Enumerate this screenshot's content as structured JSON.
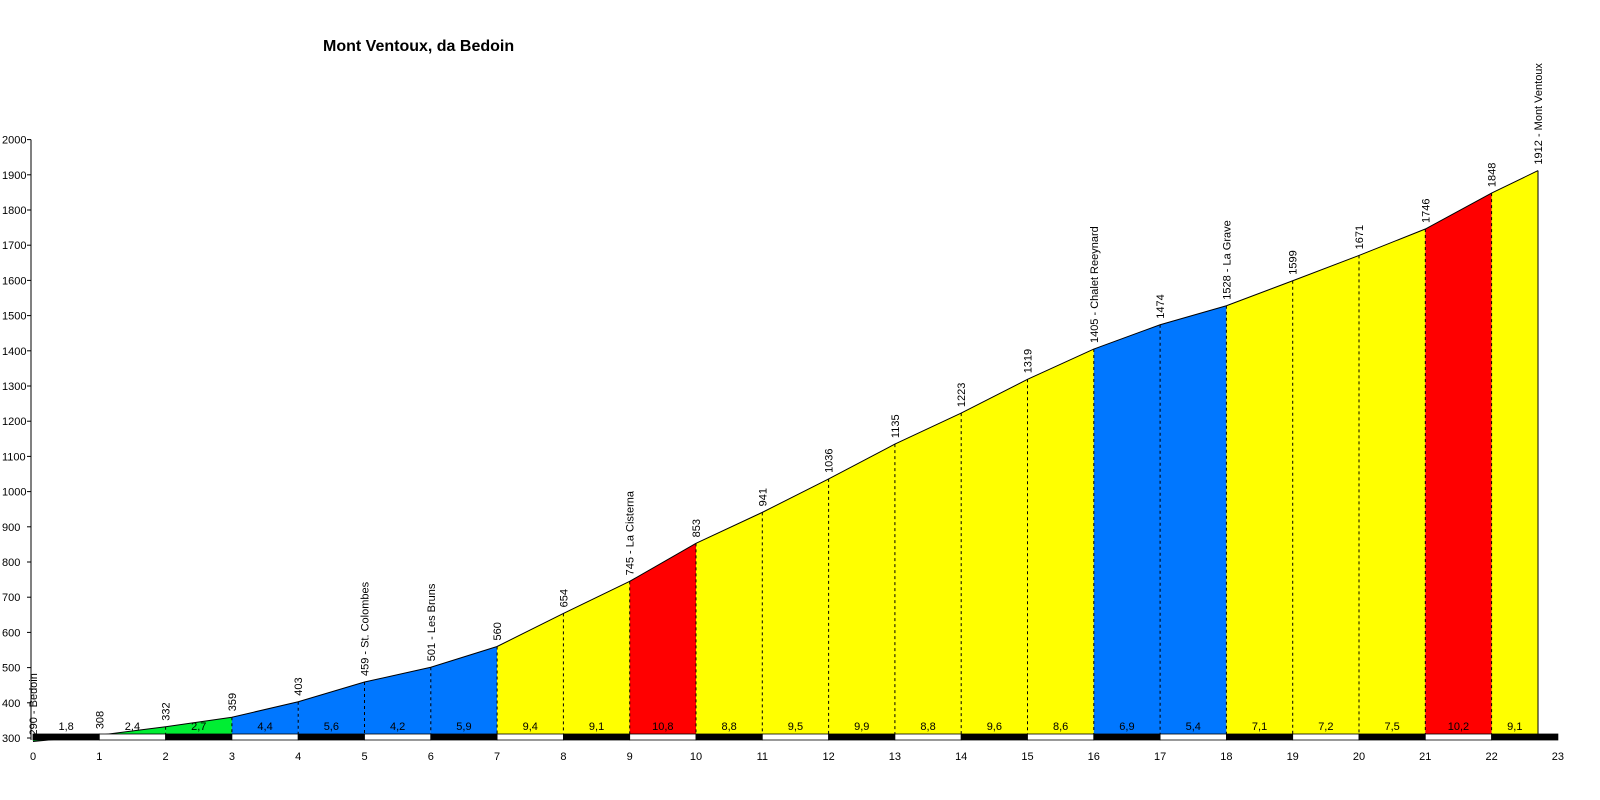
{
  "chart_data": {
    "type": "area",
    "title": "Mont Ventoux, da Bedoin",
    "xlim": [
      0,
      23
    ],
    "ylim": [
      250,
      2000
    ],
    "x_ticks": [
      0,
      1,
      2,
      3,
      4,
      5,
      6,
      7,
      8,
      9,
      10,
      11,
      12,
      13,
      14,
      15,
      16,
      17,
      18,
      19,
      20,
      21,
      22,
      23
    ],
    "y_ticks": [
      300,
      400,
      500,
      600,
      700,
      800,
      900,
      1000,
      1100,
      1200,
      1300,
      1400,
      1500,
      1600,
      1700,
      1800,
      1900,
      2000
    ],
    "grid": false,
    "legend": "none",
    "colors": {
      "green": "#00ee33",
      "blue": "#0077ff",
      "yellow": "#ffff00",
      "red": "#ff0000"
    },
    "segments": [
      {
        "x0": 0,
        "x1": 1,
        "gradient": "1,8",
        "color": "green"
      },
      {
        "x0": 1,
        "x1": 2,
        "gradient": "2,4",
        "color": "green"
      },
      {
        "x0": 2,
        "x1": 3,
        "gradient": "2,7",
        "color": "green"
      },
      {
        "x0": 3,
        "x1": 4,
        "gradient": "4,4",
        "color": "blue"
      },
      {
        "x0": 4,
        "x1": 5,
        "gradient": "5,6",
        "color": "blue"
      },
      {
        "x0": 5,
        "x1": 6,
        "gradient": "4,2",
        "color": "blue"
      },
      {
        "x0": 6,
        "x1": 7,
        "gradient": "5,9",
        "color": "blue"
      },
      {
        "x0": 7,
        "x1": 8,
        "gradient": "9,4",
        "color": "yellow"
      },
      {
        "x0": 8,
        "x1": 9,
        "gradient": "9,1",
        "color": "yellow"
      },
      {
        "x0": 9,
        "x1": 10,
        "gradient": "10,8",
        "color": "red"
      },
      {
        "x0": 10,
        "x1": 11,
        "gradient": "8,8",
        "color": "yellow"
      },
      {
        "x0": 11,
        "x1": 12,
        "gradient": "9,5",
        "color": "yellow"
      },
      {
        "x0": 12,
        "x1": 13,
        "gradient": "9,9",
        "color": "yellow"
      },
      {
        "x0": 13,
        "x1": 14,
        "gradient": "8,8",
        "color": "yellow"
      },
      {
        "x0": 14,
        "x1": 15,
        "gradient": "9,6",
        "color": "yellow"
      },
      {
        "x0": 15,
        "x1": 16,
        "gradient": "8,6",
        "color": "yellow"
      },
      {
        "x0": 16,
        "x1": 17,
        "gradient": "6,9",
        "color": "blue"
      },
      {
        "x0": 17,
        "x1": 18,
        "gradient": "5,4",
        "color": "blue"
      },
      {
        "x0": 18,
        "x1": 19,
        "gradient": "7,1",
        "color": "yellow"
      },
      {
        "x0": 19,
        "x1": 20,
        "gradient": "7,2",
        "color": "yellow"
      },
      {
        "x0": 20,
        "x1": 21,
        "gradient": "7,5",
        "color": "yellow"
      },
      {
        "x0": 21,
        "x1": 22,
        "gradient": "10,2",
        "color": "red"
      },
      {
        "x0": 22,
        "x1": 22.7,
        "gradient": "9,1",
        "color": "yellow"
      }
    ],
    "points": [
      {
        "x": 0,
        "y": 290,
        "label": "290 - Bedoin"
      },
      {
        "x": 1,
        "y": 308,
        "label": "308"
      },
      {
        "x": 2,
        "y": 332,
        "label": "332"
      },
      {
        "x": 3,
        "y": 359,
        "label": "359"
      },
      {
        "x": 4,
        "y": 403,
        "label": "403"
      },
      {
        "x": 5,
        "y": 459,
        "label": "459 - St. Colombes"
      },
      {
        "x": 6,
        "y": 501,
        "label": "501 - Les Bruns"
      },
      {
        "x": 7,
        "y": 560,
        "label": "560"
      },
      {
        "x": 8,
        "y": 654,
        "label": "654"
      },
      {
        "x": 9,
        "y": 745,
        "label": "745 - La Cisterna"
      },
      {
        "x": 10,
        "y": 853,
        "label": "853"
      },
      {
        "x": 11,
        "y": 941,
        "label": "941"
      },
      {
        "x": 12,
        "y": 1036,
        "label": "1036"
      },
      {
        "x": 13,
        "y": 1135,
        "label": "1135"
      },
      {
        "x": 14,
        "y": 1223,
        "label": "1223"
      },
      {
        "x": 15,
        "y": 1319,
        "label": "1319"
      },
      {
        "x": 16,
        "y": 1405,
        "label": "1405 - Chalet Reeynard"
      },
      {
        "x": 17,
        "y": 1474,
        "label": "1474"
      },
      {
        "x": 18,
        "y": 1528,
        "label": "1528 - La Grave"
      },
      {
        "x": 19,
        "y": 1599,
        "label": "1599"
      },
      {
        "x": 20,
        "y": 1671,
        "label": "1671"
      },
      {
        "x": 21,
        "y": 1746,
        "label": "1746"
      },
      {
        "x": 22,
        "y": 1848,
        "label": "1848"
      },
      {
        "x": 22.7,
        "y": 1912,
        "label": "1912 - Mont Ventoux"
      }
    ]
  }
}
